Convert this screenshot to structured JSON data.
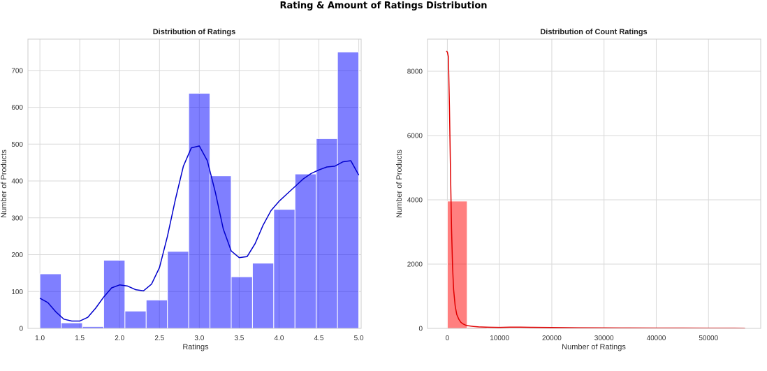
{
  "figure": {
    "title": "Rating & Amount of Ratings Distribution"
  },
  "chart_data": [
    {
      "type": "bar",
      "title": "Distribution of Ratings",
      "xlabel": "Ratings",
      "ylabel": "Number of Products",
      "xlim": [
        0.85,
        5.03
      ],
      "ylim": [
        0,
        785
      ],
      "xticks": [
        1.0,
        1.5,
        2.0,
        2.5,
        3.0,
        3.5,
        4.0,
        4.5,
        5.0
      ],
      "xtick_labels": [
        "1.0",
        "1.5",
        "2.0",
        "2.5",
        "3.0",
        "3.5",
        "4.0",
        "4.5",
        "5.0"
      ],
      "yticks": [
        0,
        100,
        200,
        300,
        400,
        500,
        600,
        700
      ],
      "ytick_labels": [
        "0",
        "100",
        "200",
        "300",
        "400",
        "500",
        "600",
        "700"
      ],
      "bin_edges": [
        1.0,
        1.2667,
        1.5333,
        1.8,
        2.0667,
        2.3333,
        2.6,
        2.8667,
        3.1333,
        3.4,
        3.6667,
        3.9333,
        4.2,
        4.4667,
        4.7333,
        5.0
      ],
      "values": [
        148,
        15,
        5,
        185,
        47,
        77,
        209,
        638,
        414,
        140,
        177,
        323,
        419,
        515,
        750
      ],
      "color": "#0000ff",
      "kde_color": "#0000cc",
      "kde": {
        "x": [
          1.0,
          1.1,
          1.2,
          1.3,
          1.4,
          1.5,
          1.6,
          1.7,
          1.8,
          1.9,
          2.0,
          2.1,
          2.2,
          2.3,
          2.4,
          2.5,
          2.6,
          2.7,
          2.8,
          2.9,
          3.0,
          3.1,
          3.2,
          3.3,
          3.4,
          3.5,
          3.6,
          3.7,
          3.8,
          3.9,
          4.0,
          4.1,
          4.2,
          4.3,
          4.4,
          4.5,
          4.6,
          4.7,
          4.8,
          4.9,
          5.0
        ],
        "y": [
          82,
          70,
          45,
          25,
          20,
          20,
          30,
          55,
          85,
          110,
          118,
          115,
          105,
          102,
          120,
          165,
          250,
          350,
          440,
          490,
          495,
          455,
          370,
          270,
          210,
          192,
          195,
          230,
          280,
          320,
          345,
          365,
          385,
          405,
          420,
          430,
          438,
          440,
          452,
          455,
          416
        ]
      },
      "grid": true
    },
    {
      "type": "bar",
      "title": "Distribution of Count Ratings",
      "xlabel": "Number of Ratings",
      "ylabel": "Number of Products",
      "xlim": [
        -3800,
        60000
      ],
      "ylim": [
        0,
        9000
      ],
      "xticks": [
        0,
        10000,
        20000,
        30000,
        40000,
        50000
      ],
      "xtick_labels": [
        "0",
        "10000",
        "20000",
        "30000",
        "40000",
        "50000"
      ],
      "yticks": [
        0,
        2000,
        4000,
        6000,
        8000
      ],
      "ytick_labels": [
        "0",
        "2000",
        "4000",
        "6000",
        "8000"
      ],
      "bin_edges": [
        0,
        3800,
        7600,
        11400,
        15200,
        19000,
        22800,
        26600,
        30400,
        34200,
        38000,
        41800,
        45600,
        49400,
        53200,
        57000
      ],
      "values": [
        3960,
        30,
        15,
        12,
        10,
        8,
        6,
        5,
        4,
        4,
        3,
        3,
        3,
        2,
        2
      ],
      "color": "#ff0000",
      "kde_color": "#e00000",
      "kde": {
        "x": [
          -200,
          0,
          200,
          400,
          600,
          800,
          1000,
          1200,
          1500,
          1800,
          2200,
          2600,
          3000,
          3500,
          4000,
          5000,
          6000,
          8000,
          10000,
          12000,
          14000,
          16000,
          18000,
          20000,
          25000,
          30000,
          35000,
          40000,
          45000,
          50000,
          55000,
          57000
        ],
        "y": [
          8630,
          8600,
          8450,
          6900,
          4900,
          3100,
          1900,
          1200,
          700,
          430,
          280,
          190,
          140,
          100,
          80,
          60,
          45,
          35,
          30,
          40,
          38,
          32,
          30,
          28,
          20,
          15,
          12,
          10,
          10,
          8,
          8,
          6
        ]
      },
      "grid": true
    }
  ]
}
